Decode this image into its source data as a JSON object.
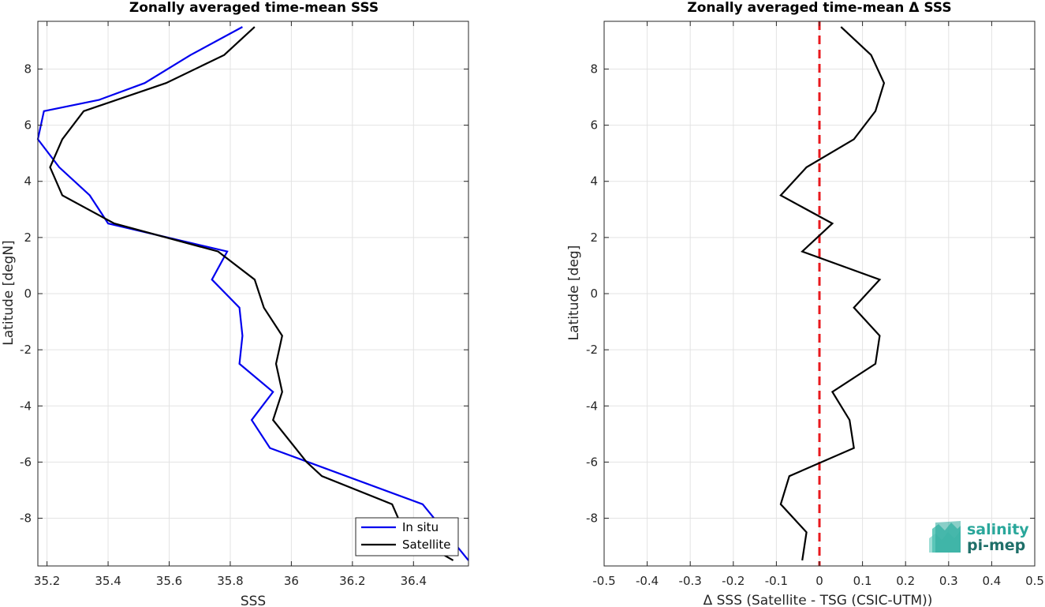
{
  "chart_data": [
    {
      "type": "line",
      "title": "Zonally averaged time-mean SSS",
      "xlabel": "SSS",
      "ylabel": "Latitude [degN]",
      "xlim": [
        35.17,
        36.58
      ],
      "ylim": [
        -9.7,
        9.7
      ],
      "x_ticks": [
        "35.2",
        "35.4",
        "35.6",
        "35.8",
        "36",
        "36.2",
        "36.4"
      ],
      "y_ticks": [
        "8",
        "6",
        "4",
        "2",
        "0",
        "-2",
        "-4",
        "-6",
        "-8"
      ],
      "grid": true,
      "legend": "bottom-right",
      "series": [
        {
          "name": "In situ",
          "color": "#0000ee",
          "points": [
            [
              35.84,
              9.5
            ],
            [
              35.67,
              8.5
            ],
            [
              35.52,
              7.5
            ],
            [
              35.37,
              6.9
            ],
            [
              35.19,
              6.5
            ],
            [
              35.17,
              5.5
            ],
            [
              35.24,
              4.5
            ],
            [
              35.34,
              3.5
            ],
            [
              35.4,
              2.5
            ],
            [
              35.79,
              1.5
            ],
            [
              35.74,
              0.5
            ],
            [
              35.83,
              -0.5
            ],
            [
              35.84,
              -1.5
            ],
            [
              35.83,
              -2.5
            ],
            [
              35.94,
              -3.5
            ],
            [
              35.87,
              -4.5
            ],
            [
              35.93,
              -5.5
            ],
            [
              36.43,
              -7.5
            ],
            [
              36.58,
              -9.5
            ]
          ]
        },
        {
          "name": "Satellite",
          "color": "#000000",
          "points": [
            [
              35.88,
              9.5
            ],
            [
              35.78,
              8.5
            ],
            [
              35.59,
              7.5
            ],
            [
              35.32,
              6.5
            ],
            [
              35.25,
              5.5
            ],
            [
              35.21,
              4.5
            ],
            [
              35.25,
              3.5
            ],
            [
              35.42,
              2.5
            ],
            [
              35.76,
              1.5
            ],
            [
              35.88,
              0.5
            ],
            [
              35.91,
              -0.5
            ],
            [
              35.97,
              -1.5
            ],
            [
              35.95,
              -2.5
            ],
            [
              35.97,
              -3.5
            ],
            [
              35.94,
              -4.5
            ],
            [
              36.05,
              -6.0
            ],
            [
              36.1,
              -6.5
            ],
            [
              36.33,
              -7.5
            ],
            [
              36.37,
              -8.5
            ],
            [
              36.53,
              -9.5
            ]
          ]
        }
      ]
    },
    {
      "type": "line",
      "title": "Zonally averaged time-mean Δ SSS",
      "xlabel": "Δ SSS (Satellite - TSG (CSIC-UTM))",
      "ylabel": "Latitude [deg]",
      "xlim": [
        -0.5,
        0.5
      ],
      "ylim": [
        -9.7,
        9.7
      ],
      "x_ticks": [
        "-0.5",
        "-0.4",
        "-0.3",
        "-0.2",
        "-0.1",
        "0",
        "0.1",
        "0.2",
        "0.3",
        "0.4",
        "0.5"
      ],
      "y_ticks": [
        "8",
        "6",
        "4",
        "2",
        "0",
        "-2",
        "-4",
        "-6",
        "-8"
      ],
      "grid": true,
      "reference_line": {
        "x": 0,
        "color": "#e8191e",
        "style": "dashed"
      },
      "series": [
        {
          "color": "#000000",
          "points": [
            [
              0.05,
              9.5
            ],
            [
              0.12,
              8.5
            ],
            [
              0.15,
              7.5
            ],
            [
              0.13,
              6.5
            ],
            [
              0.08,
              5.5
            ],
            [
              -0.03,
              4.5
            ],
            [
              -0.09,
              3.5
            ],
            [
              0.03,
              2.5
            ],
            [
              -0.04,
              1.5
            ],
            [
              0.14,
              0.5
            ],
            [
              0.08,
              -0.5
            ],
            [
              0.14,
              -1.5
            ],
            [
              0.13,
              -2.5
            ],
            [
              0.03,
              -3.5
            ],
            [
              0.07,
              -4.5
            ],
            [
              0.08,
              -5.5
            ],
            [
              -0.07,
              -6.5
            ],
            [
              -0.09,
              -7.5
            ],
            [
              -0.03,
              -8.5
            ],
            [
              -0.04,
              -9.5
            ]
          ]
        }
      ]
    }
  ],
  "logo": {
    "line1": "salinity",
    "line2": "pi-mep"
  }
}
